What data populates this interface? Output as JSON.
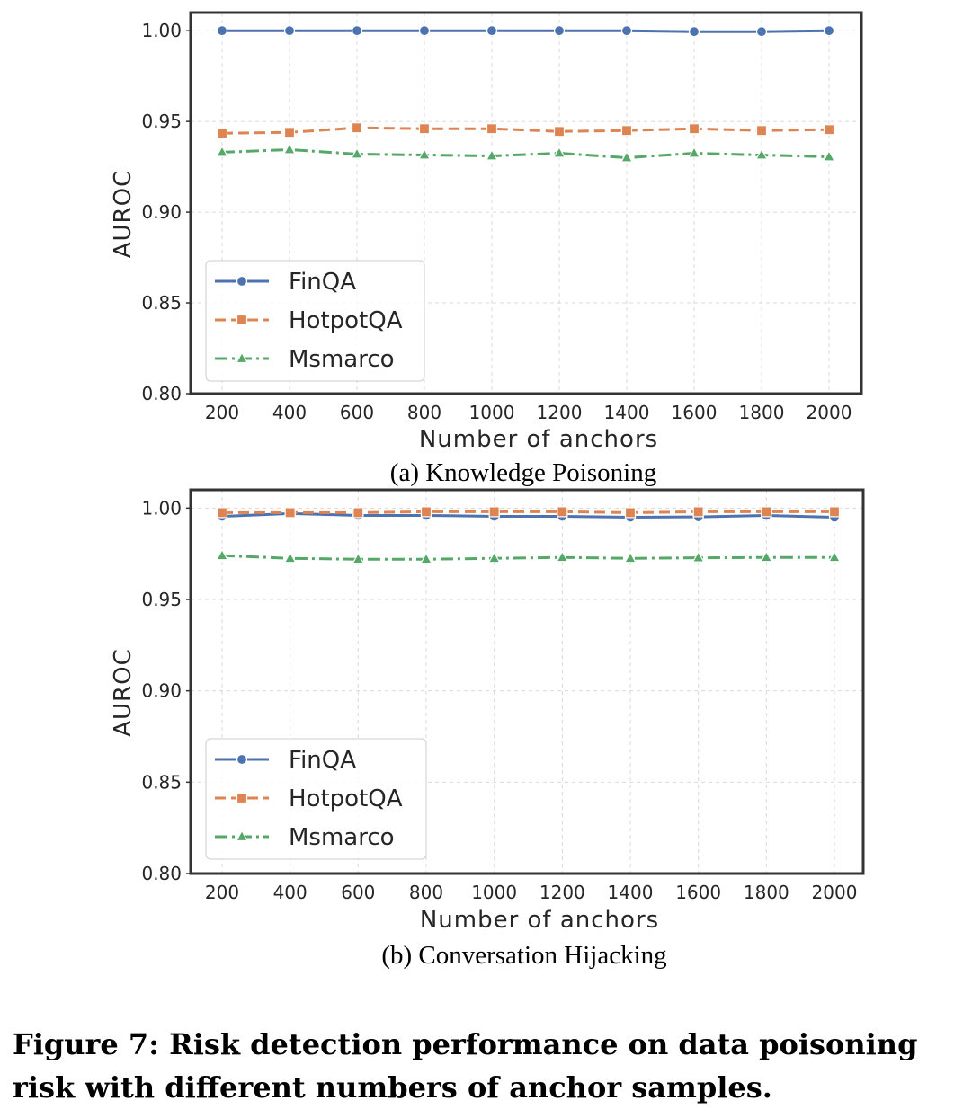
{
  "chart_data": [
    {
      "type": "line",
      "subcaption": "(a) Knowledge Poisoning",
      "title": "",
      "xlabel": "Number of anchors",
      "ylabel": "AUROC",
      "categories": [
        "200",
        "400",
        "600",
        "800",
        "1000",
        "1200",
        "1400",
        "1600",
        "1800",
        "2000"
      ],
      "ylim": [
        0.8,
        1.01
      ],
      "yticks": [
        "0.80",
        "0.85",
        "0.90",
        "0.95",
        "1.00"
      ],
      "grid": true,
      "legend_position": "lower-left",
      "series": [
        {
          "name": "FinQA",
          "color": "#4c72b0",
          "marker": "circle",
          "dash": "solid",
          "values": [
            1.0,
            1.0,
            1.0,
            1.0,
            1.0,
            1.0,
            1.0,
            0.9995,
            0.9995,
            1.0
          ]
        },
        {
          "name": "HotpotQA",
          "color": "#dd8452",
          "marker": "square",
          "dash": "dashed",
          "values": [
            0.9435,
            0.944,
            0.9465,
            0.946,
            0.946,
            0.9445,
            0.945,
            0.946,
            0.945,
            0.9455
          ]
        },
        {
          "name": "Msmarco",
          "color": "#55a868",
          "marker": "triangle",
          "dash": "dashdot",
          "values": [
            0.933,
            0.9345,
            0.932,
            0.9315,
            0.931,
            0.9325,
            0.93,
            0.9325,
            0.9315,
            0.9305
          ]
        }
      ]
    },
    {
      "type": "line",
      "subcaption": "(b) Conversation Hijacking",
      "title": "",
      "xlabel": "Number of anchors",
      "ylabel": "AUROC",
      "categories": [
        "200",
        "400",
        "600",
        "800",
        "1000",
        "1200",
        "1400",
        "1600",
        "1800",
        "2000"
      ],
      "ylim": [
        0.8,
        1.01
      ],
      "yticks": [
        "0.80",
        "0.85",
        "0.90",
        "0.95",
        "1.00"
      ],
      "grid": true,
      "legend_position": "lower-left",
      "series": [
        {
          "name": "FinQA",
          "color": "#4c72b0",
          "marker": "circle",
          "dash": "solid",
          "values": [
            0.9955,
            0.997,
            0.996,
            0.996,
            0.9955,
            0.9955,
            0.995,
            0.9952,
            0.996,
            0.995
          ]
        },
        {
          "name": "HotpotQA",
          "color": "#dd8452",
          "marker": "square",
          "dash": "dashed",
          "values": [
            0.9975,
            0.9975,
            0.9975,
            0.998,
            0.998,
            0.998,
            0.9975,
            0.998,
            0.998,
            0.998
          ]
        },
        {
          "name": "Msmarco",
          "color": "#55a868",
          "marker": "triangle",
          "dash": "dashdot",
          "values": [
            0.974,
            0.9725,
            0.972,
            0.972,
            0.9725,
            0.973,
            0.9725,
            0.9728,
            0.973,
            0.973
          ]
        }
      ]
    }
  ],
  "figure_caption": "Figure 7: Risk detection performance on data poisoning risk with different numbers of anchor samples."
}
